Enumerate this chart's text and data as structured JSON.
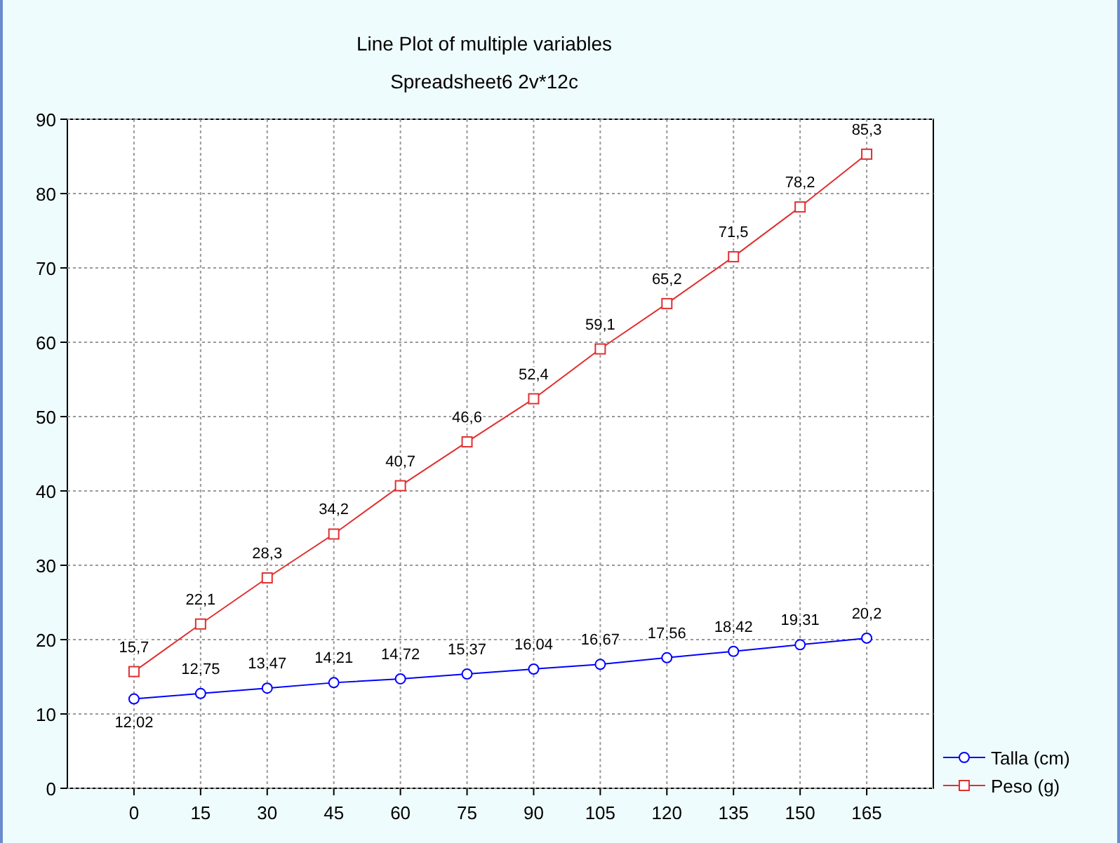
{
  "chart_data": {
    "type": "line",
    "title": "Line Plot of multiple variables",
    "subtitle": "Spreadsheet6 2v*12c",
    "x": [
      0,
      15,
      30,
      45,
      60,
      75,
      90,
      105,
      120,
      135,
      150,
      165
    ],
    "xlim": [
      -15,
      180
    ],
    "xticks": [
      0,
      15,
      30,
      45,
      60,
      75,
      90,
      105,
      120,
      135,
      150,
      165
    ],
    "ylim": [
      0,
      90
    ],
    "yticks": [
      0,
      10,
      20,
      30,
      40,
      50,
      60,
      70,
      80,
      90
    ],
    "grid": true,
    "legend": "bottom right",
    "series": [
      {
        "name": "Talla (cm)",
        "color": "#0000ff",
        "marker": "circle",
        "values": [
          12.02,
          12.75,
          13.47,
          14.21,
          14.72,
          15.37,
          16.04,
          16.67,
          17.56,
          18.42,
          19.31,
          20.2
        ],
        "value_labels": [
          "12,02",
          "12,75",
          "13,47",
          "14,21",
          "14,72",
          "15,37",
          "16,04",
          "16,67",
          "17,56",
          "18,42",
          "19,31",
          "20,2"
        ]
      },
      {
        "name": "Peso (g)",
        "color": "#e03030",
        "marker": "square",
        "values": [
          15.7,
          22.1,
          28.3,
          34.2,
          40.7,
          46.6,
          52.4,
          59.1,
          65.2,
          71.5,
          78.2,
          85.3
        ],
        "value_labels": [
          "15,7",
          "22,1",
          "28,3",
          "34,2",
          "40,7",
          "46,6",
          "52,4",
          "59,1",
          "65,2",
          "71,5",
          "78,2",
          "85,3"
        ]
      }
    ]
  }
}
